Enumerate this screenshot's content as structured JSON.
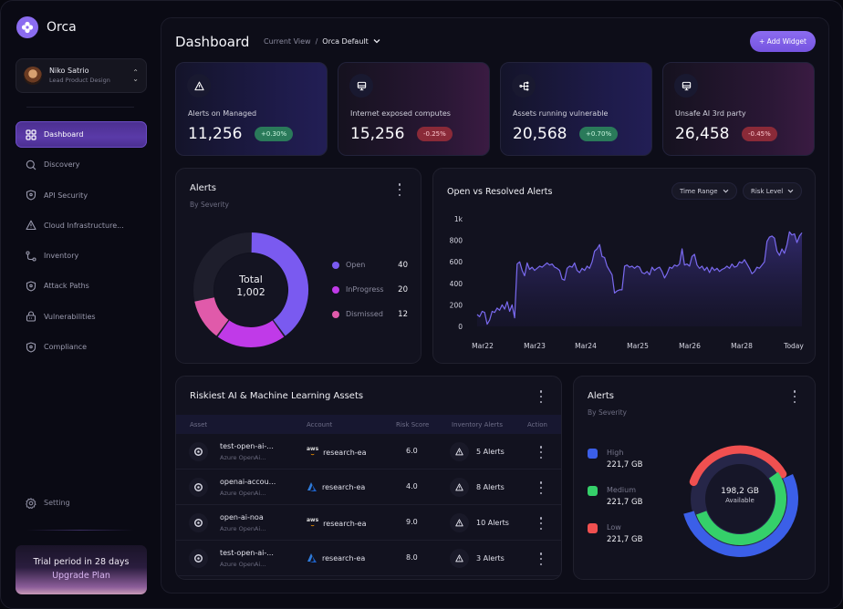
{
  "app": {
    "name": "Orca"
  },
  "user": {
    "name": "Niko Satrio",
    "role": "Lead Product Design"
  },
  "sidebar": {
    "items": [
      {
        "label": "Dashboard",
        "icon": "grid-icon",
        "active": true
      },
      {
        "label": "Discovery",
        "icon": "search-icon"
      },
      {
        "label": "API Security",
        "icon": "shield-icon"
      },
      {
        "label": "Cloud Infrastructure...",
        "icon": "warning-icon"
      },
      {
        "label": "Inventory",
        "icon": "route-icon"
      },
      {
        "label": "Attack Paths",
        "icon": "shield-icon"
      },
      {
        "label": "Vulnerabilities",
        "icon": "lock-icon"
      },
      {
        "label": "Compliance",
        "icon": "shield-icon"
      }
    ],
    "setting_label": "Setting",
    "trial": {
      "text": "Trial period in 28 days",
      "cta": "Upgrade Plan"
    }
  },
  "header": {
    "title": "Dashboard",
    "crumb_label": "Current View",
    "crumb_sep": "/",
    "view": "Orca Default",
    "add_widget": "+ Add Widget"
  },
  "stats": [
    {
      "label": "Alerts on Managed",
      "value": "11,256",
      "change": "+0.30%",
      "trend": "up",
      "icon": "warning-icon"
    },
    {
      "label": "Internet exposed computes",
      "value": "15,256",
      "change": "-0.25%",
      "trend": "down",
      "icon": "monitor-icon"
    },
    {
      "label": "Assets running vulnerable",
      "value": "20,568",
      "change": "+0.70%",
      "trend": "up",
      "icon": "network-icon"
    },
    {
      "label": "Unsafe AI 3rd party",
      "value": "26,458",
      "change": "-0.45%",
      "trend": "down",
      "icon": "monitor-icon"
    }
  ],
  "alerts_donut": {
    "title": "Alerts",
    "subtitle": "By Severity",
    "center_label": "Total",
    "center_value": "1,002",
    "legend": [
      {
        "label": "Open",
        "value": "40",
        "color": "#7a5af0"
      },
      {
        "label": "InProgress",
        "value": "20",
        "color": "#c03ae8"
      },
      {
        "label": "Dismissed",
        "value": "12",
        "color": "#e05aaa"
      }
    ]
  },
  "line_chart": {
    "title": "Open vs Resolved Alerts",
    "filters": [
      "Time Range",
      "Risk Level"
    ]
  },
  "chart_data": {
    "type": "area",
    "title": "Open vs Resolved Alerts",
    "x_tick_labels": [
      "Mar22",
      "Mar23",
      "Mar24",
      "Mar25",
      "Mar26",
      "Mar28",
      "Today"
    ],
    "y_tick_labels": [
      "0",
      "200",
      "400",
      "600",
      "800",
      "1k"
    ],
    "ylim": [
      0,
      1000
    ],
    "grid": false,
    "series": [
      {
        "name": "Alerts",
        "color": "#7a6af0",
        "values": [
          110,
          90,
          140,
          130,
          20,
          60,
          140,
          130,
          170,
          150,
          200,
          160,
          230,
          140,
          200,
          80,
          580,
          600,
          520,
          470,
          590,
          530,
          550,
          520,
          540,
          560,
          550,
          570,
          590,
          570,
          580,
          550,
          540,
          520,
          440,
          430,
          540,
          560,
          550,
          590,
          520,
          500,
          540,
          520,
          560,
          540,
          600,
          700,
          720,
          760,
          650,
          640,
          560,
          520,
          480,
          310,
          330,
          340,
          340,
          560,
          570,
          550,
          560,
          540,
          560,
          550,
          500,
          490,
          510,
          480,
          550,
          520,
          540,
          550,
          510,
          450,
          490,
          550,
          540,
          570,
          560,
          580,
          720,
          570,
          580,
          560,
          650,
          670,
          570,
          540,
          560,
          520,
          550,
          500,
          550,
          520,
          540,
          510,
          530,
          540,
          560,
          540,
          580,
          550,
          560,
          600,
          590,
          620,
          580,
          540,
          490,
          510,
          550,
          540,
          570,
          600,
          790,
          830,
          840,
          820,
          700,
          660,
          720,
          680,
          760,
          880,
          850,
          860,
          780,
          840,
          870
        ]
      }
    ]
  },
  "assets_table": {
    "title": "Riskiest AI & Machine Learning Assets",
    "columns": [
      "Asset",
      "Account",
      "Risk Score",
      "Inventory Alerts",
      "Action"
    ],
    "rows": [
      {
        "name": "test-open-ai-...",
        "sub": "Azure OpenAi...",
        "provider": "aws",
        "account": "research-ea",
        "score": "6.0",
        "alerts": "5 Alerts"
      },
      {
        "name": "openai-accou...",
        "sub": "Azure OpenAi...",
        "provider": "azure",
        "account": "research-ea",
        "score": "4.0",
        "alerts": "8 Alerts"
      },
      {
        "name": "open-ai-noa",
        "sub": "Azure OpenAi...",
        "provider": "aws",
        "account": "research-ea",
        "score": "9.0",
        "alerts": "10 Alerts"
      },
      {
        "name": "test-open-ai-...",
        "sub": "Azure OpenAi...",
        "provider": "azure",
        "account": "research-ea",
        "score": "8.0",
        "alerts": "3 Alerts"
      }
    ]
  },
  "severity_card": {
    "title": "Alerts",
    "subtitle": "By Severity",
    "center_value": "198,2 GB",
    "center_label": "Available",
    "items": [
      {
        "label": "High",
        "value": "221,7 GB",
        "color": "#3b5fe8"
      },
      {
        "label": "Medium",
        "value": "221,7 GB",
        "color": "#35d06a"
      },
      {
        "label": "Low",
        "value": "221,7 GB",
        "color": "#f05050"
      }
    ]
  }
}
